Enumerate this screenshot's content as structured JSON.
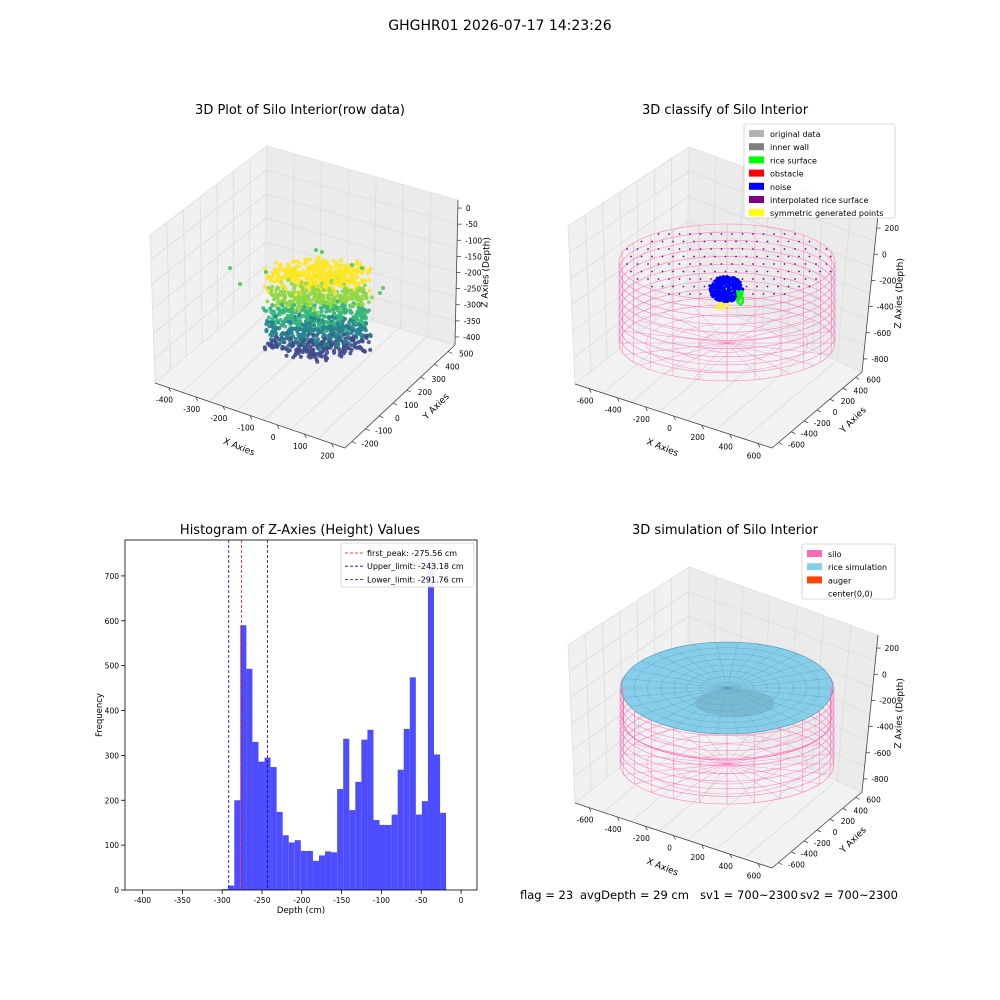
{
  "figure": {
    "suptitle": "GHGHR01 2026-07-17 14:23:26",
    "footer": {
      "flag": "flag = 23",
      "avg_depth": "avgDepth = 29 cm",
      "sv1": "sv1 = 700~2300",
      "sv2": "sv2 = 700~2300"
    }
  },
  "panels": {
    "raw": {
      "title": "3D Plot of Silo Interior(row data)",
      "xlabel": "X Axies",
      "ylabel": "Y Axies",
      "zlabel": "Z Axies (Depth)",
      "x_ticks": [
        "-400",
        "-300",
        "-200",
        "-100",
        "0",
        "100",
        "200"
      ],
      "y_ticks": [
        "-200",
        "-100",
        "0",
        "100",
        "200",
        "300",
        "400",
        "500"
      ],
      "z_ticks": [
        "0",
        "-50",
        "-100",
        "-150",
        "-200",
        "-250",
        "-300",
        "-350",
        "-400"
      ],
      "colormap": [
        "#3e4a89",
        "#26828e",
        "#35b779",
        "#90d743",
        "#fde725"
      ]
    },
    "classify": {
      "title": "3D classify of Silo Interior",
      "xlabel": "X Axies",
      "ylabel": "Y Axies",
      "zlabel": "Z Axies (Depth)",
      "x_ticks": [
        "-600",
        "-400",
        "-200",
        "0",
        "200",
        "400",
        "600"
      ],
      "y_ticks": [
        "-600",
        "-400",
        "-200",
        "0",
        "200",
        "400",
        "600"
      ],
      "z_ticks": [
        "200",
        "0",
        "-200",
        "-400",
        "-600",
        "-800"
      ],
      "legend": [
        {
          "label": "original data",
          "color": "#b3b3b3"
        },
        {
          "label": "inner wall",
          "color": "#808080"
        },
        {
          "label": "rice surface",
          "color": "#00ff00"
        },
        {
          "label": "obstacle",
          "color": "#ff0000"
        },
        {
          "label": "noise",
          "color": "#0000ff"
        },
        {
          "label": "interpolated rice surface",
          "color": "#800080"
        },
        {
          "label": "symmetric generated points",
          "color": "#ffff00"
        }
      ],
      "wire_color": "#ff69b4"
    },
    "hist": {
      "title": "Histogram of Z-Axies (Height) Values",
      "xlabel": "Depth (cm)",
      "ylabel": "Frequency",
      "bar_color": "#4d4dff",
      "legend": [
        {
          "label": "first_peak: -275.56 cm",
          "color": "#ff0000"
        },
        {
          "label": "Upper_limit: -243.18 cm",
          "color": "#0000ff"
        },
        {
          "label": "Lower_limit: -291.76 cm",
          "color": "#0000ff"
        }
      ]
    },
    "sim": {
      "title": "3D simulation of Silo Interior",
      "xlabel": "X Axies",
      "ylabel": "Y Axies",
      "zlabel": "Z Axies (Depth)",
      "x_ticks": [
        "-600",
        "-400",
        "-200",
        "0",
        "200",
        "400",
        "600"
      ],
      "y_ticks": [
        "-600",
        "-400",
        "-200",
        "0",
        "200",
        "400",
        "600"
      ],
      "z_ticks": [
        "200",
        "0",
        "-200",
        "-400",
        "-600",
        "-800"
      ],
      "legend": [
        {
          "label": "silo",
          "color": "#ff69b4"
        },
        {
          "label": "rice simulation",
          "color": "#87ceeb"
        },
        {
          "label": "auger",
          "color": "#ff4500"
        },
        {
          "label": "center(0,0)",
          "color": ""
        }
      ]
    }
  },
  "chart_data": [
    {
      "type": "scatter",
      "title": "3D Plot of Silo Interior(row data)",
      "xlabel": "X Axies",
      "ylabel": "Y Axies",
      "zlabel": "Z Axies (Depth)",
      "xlim": [
        -430,
        220
      ],
      "ylim": [
        -220,
        560
      ],
      "zlim": [
        -430,
        20
      ],
      "grid": true
    },
    {
      "type": "scatter",
      "title": "3D classify of Silo Interior",
      "xlabel": "X Axies",
      "ylabel": "Y Axies",
      "zlabel": "Z Axies (Depth)",
      "xlim": [
        -700,
        700
      ],
      "ylim": [
        -700,
        700
      ],
      "zlim": [
        -900,
        300
      ],
      "grid": true,
      "legend_position": "upper-right",
      "series": [
        {
          "name": "original data"
        },
        {
          "name": "inner wall"
        },
        {
          "name": "rice surface"
        },
        {
          "name": "obstacle"
        },
        {
          "name": "noise"
        },
        {
          "name": "interpolated rice surface"
        },
        {
          "name": "symmetric generated points"
        }
      ]
    },
    {
      "type": "bar",
      "title": "Histogram of Z-Axies (Height) Values",
      "xlabel": "Depth (cm)",
      "ylabel": "Frequency",
      "xlim": [
        -422,
        20
      ],
      "ylim": [
        0,
        780
      ],
      "x_ticks": [
        -400,
        -350,
        -300,
        -250,
        -200,
        -150,
        -100,
        -50,
        0
      ],
      "y_ticks": [
        0,
        100,
        200,
        300,
        400,
        500,
        600,
        700
      ],
      "bin_width": 7.6,
      "bin_starts": [
        -300,
        -292.4,
        -284.8,
        -277.2,
        -269.6,
        -262,
        -254.4,
        -246.8,
        -239.2,
        -231.6,
        -224,
        -216.4,
        -208.8,
        -201.2,
        -193.6,
        -186,
        -178.4,
        -170.8,
        -163.2,
        -155.6,
        -148,
        -140.4,
        -132.8,
        -125.2,
        -117.6,
        -110,
        -102.4,
        -94.8,
        -87.2,
        -79.6,
        -72,
        -64.4,
        -56.8,
        -49.2,
        -41.6,
        -34,
        -26.4,
        -18.8,
        -11.2,
        -3.6
      ],
      "values": [
        2,
        10,
        200,
        590,
        493,
        330,
        286,
        295,
        274,
        174,
        122,
        106,
        111,
        87,
        87,
        65,
        77,
        86,
        84,
        225,
        337,
        178,
        241,
        335,
        357,
        156,
        145,
        145,
        168,
        268,
        359,
        474,
        168,
        198,
        735,
        302,
        172,
        0,
        0,
        0
      ],
      "first_peak": -275.56,
      "upper_limit": -243.18,
      "lower_limit": -291.76,
      "legend_position": "upper-right",
      "series": [
        {
          "name": "first_peak: -275.56 cm"
        },
        {
          "name": "Upper_limit: -243.18 cm"
        },
        {
          "name": "Lower_limit: -291.76 cm"
        }
      ]
    },
    {
      "type": "area",
      "title": "3D simulation of Silo Interior",
      "xlabel": "X Axies",
      "ylabel": "Y Axies",
      "zlabel": "Z Axies (Depth)",
      "xlim": [
        -700,
        700
      ],
      "ylim": [
        -700,
        700
      ],
      "zlim": [
        -900,
        300
      ],
      "grid": true,
      "legend_position": "upper-right",
      "series": [
        {
          "name": "silo"
        },
        {
          "name": "rice simulation"
        },
        {
          "name": "auger"
        },
        {
          "name": "center(0,0)"
        }
      ]
    }
  ]
}
